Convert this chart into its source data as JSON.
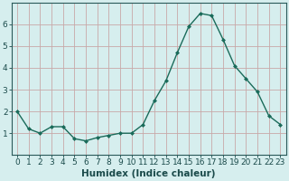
{
  "x": [
    0,
    1,
    2,
    3,
    4,
    5,
    6,
    7,
    8,
    9,
    10,
    11,
    12,
    13,
    14,
    15,
    16,
    17,
    18,
    19,
    20,
    21,
    22,
    23
  ],
  "y": [
    2.0,
    1.2,
    1.0,
    1.3,
    1.3,
    0.75,
    0.65,
    0.8,
    0.9,
    1.0,
    1.0,
    1.4,
    2.5,
    3.4,
    4.7,
    5.9,
    6.5,
    6.4,
    5.3,
    4.1,
    3.5,
    2.9,
    1.8,
    1.4
  ],
  "line_color": "#1a6b5a",
  "marker": "D",
  "marker_size": 2.0,
  "bg_color": "#d6eeee",
  "grid_color": "#c8a8a8",
  "xlabel": "Humidex (Indice chaleur)",
  "xlim": [
    -0.5,
    23.5
  ],
  "ylim": [
    0,
    7
  ],
  "yticks": [
    1,
    2,
    3,
    4,
    5,
    6
  ],
  "xtick_labels": [
    "0",
    "1",
    "2",
    "3",
    "4",
    "5",
    "6",
    "7",
    "8",
    "9",
    "10",
    "11",
    "12",
    "13",
    "14",
    "15",
    "16",
    "17",
    "18",
    "19",
    "20",
    "21",
    "22",
    "23"
  ],
  "xlabel_fontsize": 7.5,
  "tick_fontsize": 6.5,
  "line_width": 1.0
}
